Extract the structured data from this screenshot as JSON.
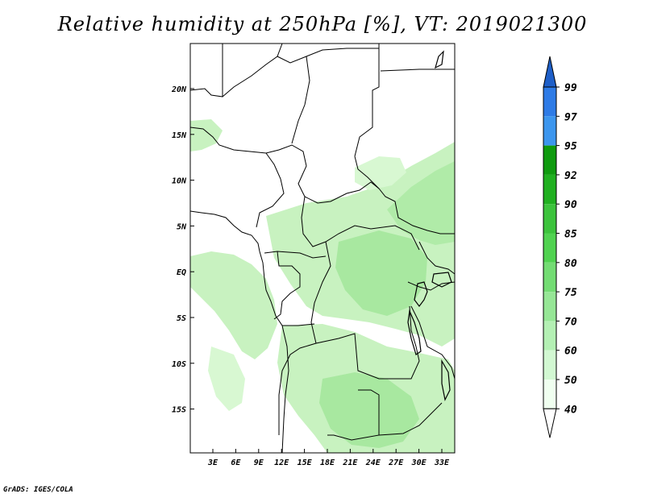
{
  "title": "Relative humidity at 250hPa [%], VT: 2019021300",
  "footer": "GrADS: IGES/COLA",
  "map": {
    "lat_labels": [
      "20N",
      "15N",
      "10N",
      "5N",
      "EQ",
      "5S",
      "10S",
      "15S"
    ],
    "lon_labels": [
      "3E",
      "6E",
      "9E",
      "12E",
      "15E",
      "18E",
      "21E",
      "24E",
      "27E",
      "30E",
      "33E"
    ]
  },
  "colorbar": {
    "labels": [
      "99",
      "97",
      "95",
      "92",
      "90",
      "85",
      "80",
      "75",
      "70",
      "60",
      "50",
      "40"
    ],
    "colors": [
      "#1e5fc8",
      "#2e7be6",
      "#3c96ee",
      "#0f9b0f",
      "#20b020",
      "#3cc33c",
      "#50d250",
      "#73dc73",
      "#96e696",
      "#b4f0b4",
      "#d2f8d2",
      "#f0fff0"
    ],
    "top_cap_color": "#1e5fc8",
    "bottom_cap_color": "#ffffff"
  },
  "colors": {
    "humid_light": "#d8f8d2",
    "humid_mid": "#b8efb0",
    "humid_dark": "#98e690"
  }
}
